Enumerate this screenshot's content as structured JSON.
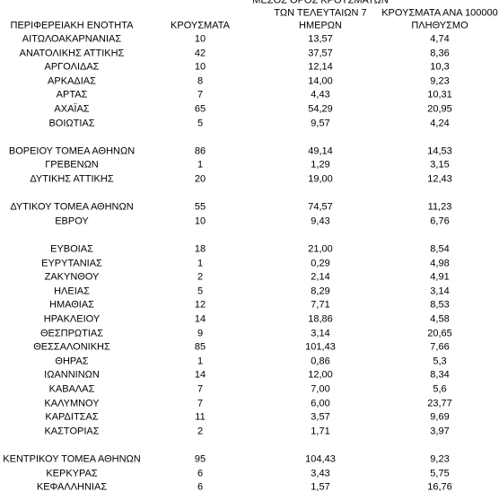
{
  "table": {
    "header": [
      [
        "ΠΕΡΙΦΕΡΕΙΑΚΗ ΕΝΟΤΗΤΑ"
      ],
      [
        "ΚΡΟΥΣΜΑΤΑ"
      ],
      [
        "ΜΕΣΟΣ ΟΡΟΣ ΚΡΟΥΣΜΑΤΩΝ",
        "ΤΩΝ ΤΕΛΕΥΤΑΙΩΝ 7",
        "ΗΜΕΡΩΝ"
      ],
      [
        "ΚΡΟΥΣΜΑΤΑ ΑΝΑ 100000",
        "ΠΛΗΘΥΣΜΟ"
      ]
    ],
    "groups": [
      {
        "rows": [
          [
            "ΑΙΤΩΛΟΑΚΑΡΝΑΝΙΑΣ",
            "10",
            "13,57",
            "4,74"
          ],
          [
            "ΑΝΑΤΟΛΙΚΗΣ ΑΤΤΙΚΗΣ",
            "42",
            "37,57",
            "8,36"
          ],
          [
            "ΑΡΓΟΛΙΔΑΣ",
            "10",
            "12,14",
            "10,3"
          ],
          [
            "ΑΡΚΑΔΙΑΣ",
            "8",
            "14,00",
            "9,23"
          ],
          [
            "ΑΡΤΑΣ",
            "7",
            "4,43",
            "10,31"
          ],
          [
            "ΑΧΑΪΑΣ",
            "65",
            "54,29",
            "20,95"
          ],
          [
            "ΒΟΙΩΤΙΑΣ",
            "5",
            "9,57",
            "4,24"
          ]
        ]
      },
      {
        "rows": [
          [
            "ΒΟΡΕΙΟΥ ΤΟΜΕΑ ΑΘΗΝΩΝ",
            "86",
            "49,14",
            "14,53"
          ],
          [
            "ΓΡΕΒΕΝΩΝ",
            "1",
            "1,29",
            "3,15"
          ],
          [
            "ΔΥΤΙΚΗΣ ΑΤΤΙΚΗΣ",
            "20",
            "19,00",
            "12,43"
          ]
        ]
      },
      {
        "rows": [
          [
            "ΔΥΤΙΚΟΥ ΤΟΜΕΑ ΑΘΗΝΩΝ",
            "55",
            "74,57",
            "11,23"
          ],
          [
            "ΕΒΡΟΥ",
            "10",
            "9,43",
            "6,76"
          ]
        ]
      },
      {
        "rows": [
          [
            "ΕΥΒΟΙΑΣ",
            "18",
            "21,00",
            "8,54"
          ],
          [
            "ΕΥΡΥΤΑΝΙΑΣ",
            "1",
            "0,29",
            "4,98"
          ],
          [
            "ΖΑΚΥΝΘΟΥ",
            "2",
            "2,14",
            "4,91"
          ],
          [
            "ΗΛΕΙΑΣ",
            "5",
            "8,29",
            "3,14"
          ],
          [
            "ΗΜΑΘΙΑΣ",
            "12",
            "7,71",
            "8,53"
          ],
          [
            "ΗΡΑΚΛΕΙΟΥ",
            "14",
            "18,86",
            "4,58"
          ],
          [
            "ΘΕΣΠΡΩΤΙΑΣ",
            "9",
            "3,14",
            "20,65"
          ],
          [
            "ΘΕΣΣΑΛΟΝΙΚΗΣ",
            "85",
            "101,43",
            "7,66"
          ],
          [
            "ΘΗΡΑΣ",
            "1",
            "0,86",
            "5,3"
          ],
          [
            "ΙΩΑΝΝΙΝΩΝ",
            "14",
            "12,00",
            "8,34"
          ],
          [
            "ΚΑΒΑΛΑΣ",
            "7",
            "7,00",
            "5,6"
          ],
          [
            "ΚΑΛΥΜΝΟΥ",
            "7",
            "6,00",
            "23,77"
          ],
          [
            "ΚΑΡΔΙΤΣΑΣ",
            "11",
            "3,57",
            "9,69"
          ],
          [
            "ΚΑΣΤΟΡΙΑΣ",
            "2",
            "1,71",
            "3,97"
          ]
        ]
      },
      {
        "rows": [
          [
            "ΚΕΝΤΡΙΚΟΥ ΤΟΜΕΑ ΑΘΗΝΩΝ",
            "95",
            "104,43",
            "9,23"
          ],
          [
            "ΚΕΡΚΥΡΑΣ",
            "6",
            "3,43",
            "5,75"
          ],
          [
            "ΚΕΦΑΛΛΗΝΙΑΣ",
            "6",
            "1,57",
            "16,76"
          ]
        ]
      }
    ]
  }
}
